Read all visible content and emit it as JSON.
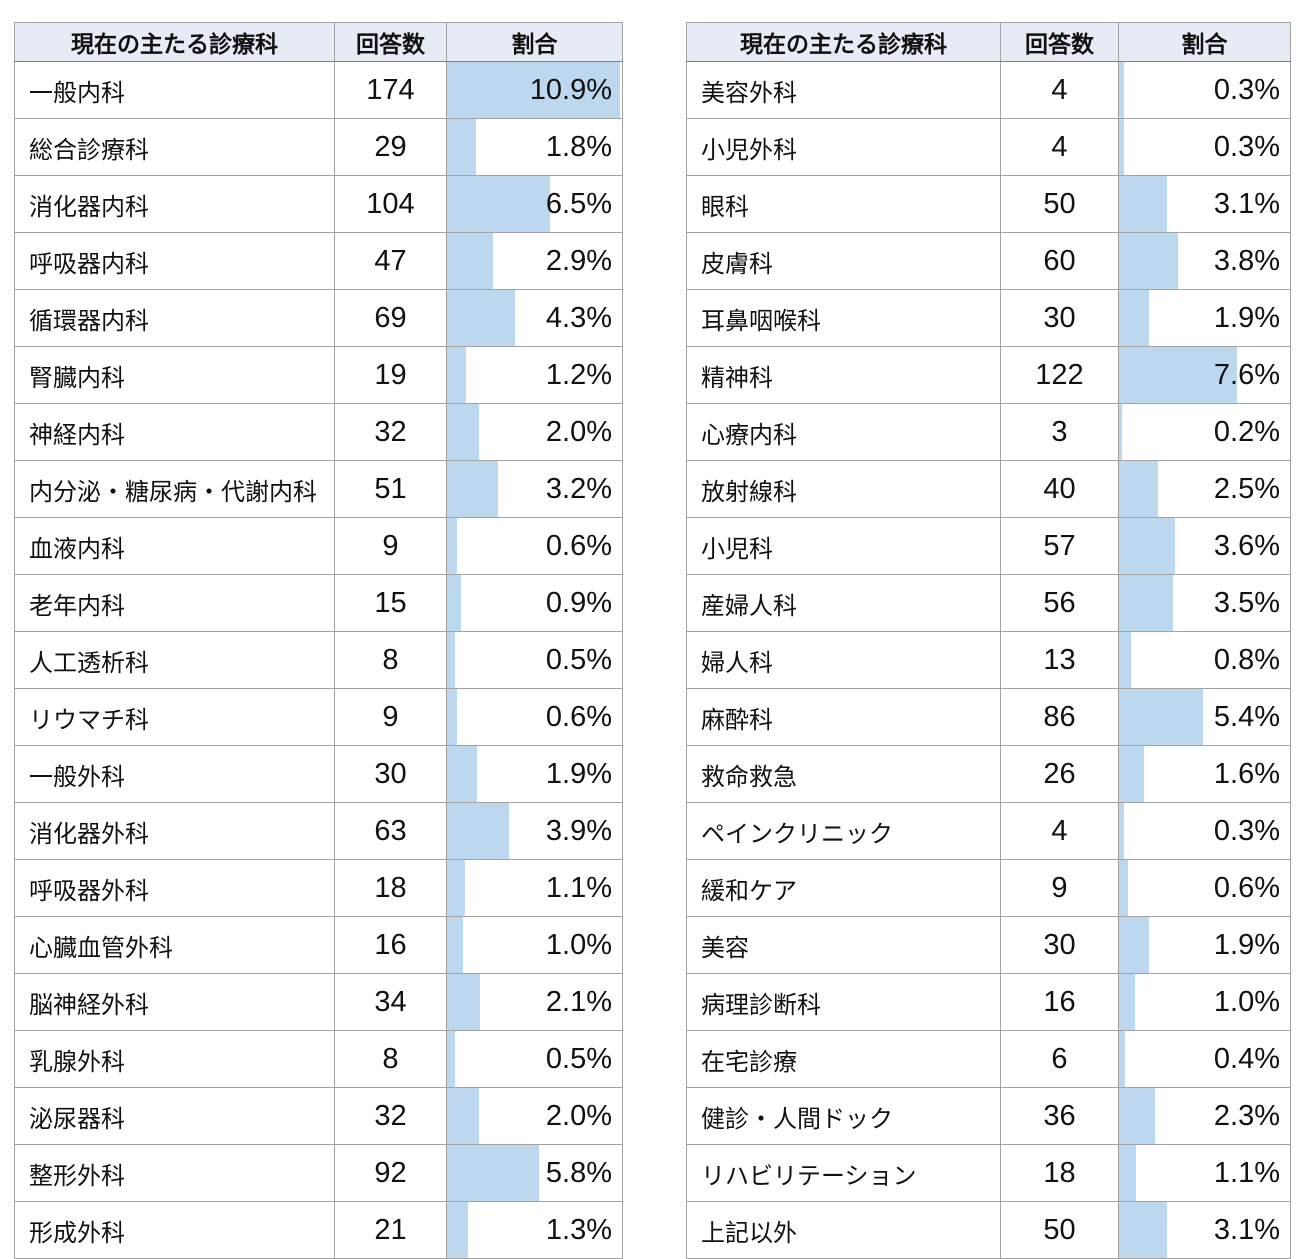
{
  "colors": {
    "bar": "#bdd7ee",
    "header_bg": "#e6ebf5",
    "border_inner": "#a3a3a3",
    "border_header": "#7f7f7f"
  },
  "chart_data": {
    "type": "table",
    "columns": [
      "現在の主たる診療科",
      "回答数",
      "割合"
    ],
    "bar_axis_max_pct": 11.0,
    "bar_style": "horizontal data bar behind percentage text",
    "tables": [
      {
        "rows": [
          {
            "label": "一般内科",
            "count": 174,
            "pct": "10.9%",
            "value": 10.9
          },
          {
            "label": "総合診療科",
            "count": 29,
            "pct": "1.8%",
            "value": 1.8
          },
          {
            "label": "消化器内科",
            "count": 104,
            "pct": "6.5%",
            "value": 6.5
          },
          {
            "label": "呼吸器内科",
            "count": 47,
            "pct": "2.9%",
            "value": 2.9
          },
          {
            "label": "循環器内科",
            "count": 69,
            "pct": "4.3%",
            "value": 4.3
          },
          {
            "label": "腎臓内科",
            "count": 19,
            "pct": "1.2%",
            "value": 1.2
          },
          {
            "label": "神経内科",
            "count": 32,
            "pct": "2.0%",
            "value": 2.0
          },
          {
            "label": "内分泌・糖尿病・代謝内科",
            "count": 51,
            "pct": "3.2%",
            "value": 3.2
          },
          {
            "label": "血液内科",
            "count": 9,
            "pct": "0.6%",
            "value": 0.6
          },
          {
            "label": "老年内科",
            "count": 15,
            "pct": "0.9%",
            "value": 0.9
          },
          {
            "label": "人工透析科",
            "count": 8,
            "pct": "0.5%",
            "value": 0.5
          },
          {
            "label": "リウマチ科",
            "count": 9,
            "pct": "0.6%",
            "value": 0.6
          },
          {
            "label": "一般外科",
            "count": 30,
            "pct": "1.9%",
            "value": 1.9
          },
          {
            "label": "消化器外科",
            "count": 63,
            "pct": "3.9%",
            "value": 3.9
          },
          {
            "label": "呼吸器外科",
            "count": 18,
            "pct": "1.1%",
            "value": 1.1
          },
          {
            "label": "心臓血管外科",
            "count": 16,
            "pct": "1.0%",
            "value": 1.0
          },
          {
            "label": "脳神経外科",
            "count": 34,
            "pct": "2.1%",
            "value": 2.1
          },
          {
            "label": "乳腺外科",
            "count": 8,
            "pct": "0.5%",
            "value": 0.5
          },
          {
            "label": "泌尿器科",
            "count": 32,
            "pct": "2.0%",
            "value": 2.0
          },
          {
            "label": "整形外科",
            "count": 92,
            "pct": "5.8%",
            "value": 5.8
          },
          {
            "label": "形成外科",
            "count": 21,
            "pct": "1.3%",
            "value": 1.3
          }
        ]
      },
      {
        "rows": [
          {
            "label": "美容外科",
            "count": 4,
            "pct": "0.3%",
            "value": 0.3
          },
          {
            "label": "小児外科",
            "count": 4,
            "pct": "0.3%",
            "value": 0.3
          },
          {
            "label": "眼科",
            "count": 50,
            "pct": "3.1%",
            "value": 3.1
          },
          {
            "label": "皮膚科",
            "count": 60,
            "pct": "3.8%",
            "value": 3.8
          },
          {
            "label": "耳鼻咽喉科",
            "count": 30,
            "pct": "1.9%",
            "value": 1.9
          },
          {
            "label": "精神科",
            "count": 122,
            "pct": "7.6%",
            "value": 7.6
          },
          {
            "label": "心療内科",
            "count": 3,
            "pct": "0.2%",
            "value": 0.2
          },
          {
            "label": "放射線科",
            "count": 40,
            "pct": "2.5%",
            "value": 2.5
          },
          {
            "label": "小児科",
            "count": 57,
            "pct": "3.6%",
            "value": 3.6
          },
          {
            "label": "産婦人科",
            "count": 56,
            "pct": "3.5%",
            "value": 3.5
          },
          {
            "label": "婦人科",
            "count": 13,
            "pct": "0.8%",
            "value": 0.8
          },
          {
            "label": "麻酔科",
            "count": 86,
            "pct": "5.4%",
            "value": 5.4
          },
          {
            "label": "救命救急",
            "count": 26,
            "pct": "1.6%",
            "value": 1.6
          },
          {
            "label": "ペインクリニック",
            "count": 4,
            "pct": "0.3%",
            "value": 0.3
          },
          {
            "label": "緩和ケア",
            "count": 9,
            "pct": "0.6%",
            "value": 0.6
          },
          {
            "label": "美容",
            "count": 30,
            "pct": "1.9%",
            "value": 1.9
          },
          {
            "label": "病理診断科",
            "count": 16,
            "pct": "1.0%",
            "value": 1.0
          },
          {
            "label": "在宅診療",
            "count": 6,
            "pct": "0.4%",
            "value": 0.4
          },
          {
            "label": "健診・人間ドック",
            "count": 36,
            "pct": "2.3%",
            "value": 2.3
          },
          {
            "label": "リハビリテーション",
            "count": 18,
            "pct": "1.1%",
            "value": 1.1
          },
          {
            "label": "上記以外",
            "count": 50,
            "pct": "3.1%",
            "value": 3.1
          }
        ]
      }
    ]
  }
}
